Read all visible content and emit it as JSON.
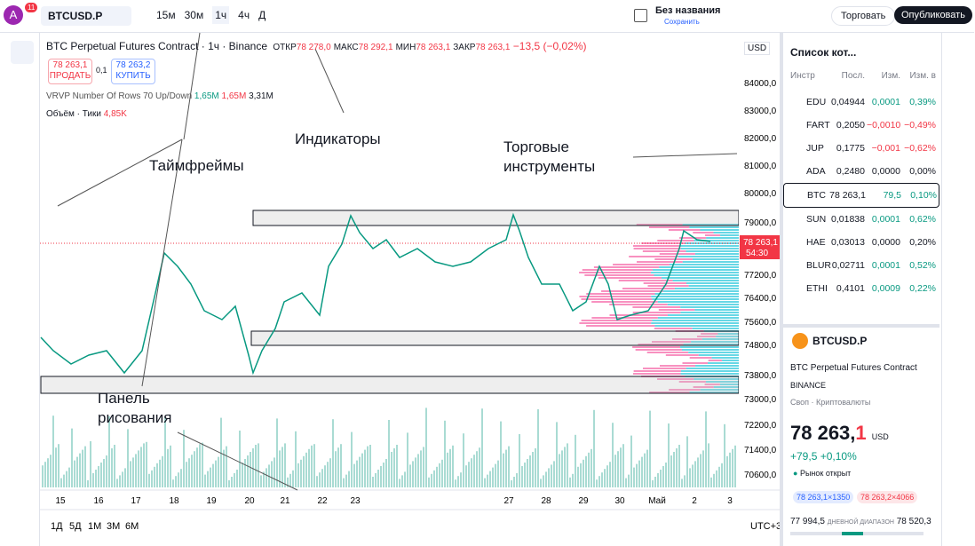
{
  "header": {
    "avatar": "A",
    "badge": "11",
    "symbol": "BTCUSD.P",
    "timeframes": [
      "15м",
      "30м",
      "1ч",
      "4ч",
      "Д"
    ],
    "layout_name": "Без названия",
    "saved": "Сохранить",
    "trade": "Торговать",
    "publish": "Опубликовать"
  },
  "chart": {
    "legend": "BTC Perpetual Futures Contract · 1ч · Binance",
    "ohlc": [
      [
        "ОТКР",
        "78 278,0"
      ],
      [
        "МАКС",
        "78 292,1"
      ],
      [
        "МИН",
        "78 263,1"
      ],
      [
        "ЗАКР",
        "78 263,1"
      ]
    ],
    "change": "−13,5 (−0,02%)",
    "sell_price": "78 263,1",
    "sell": "ПРОДАТЬ",
    "spread": "0,1",
    "buy_price": "78 263,2",
    "buy": "КУПИТЬ",
    "vrvp": "VRVP Number Of Rows 70 Up/Down",
    "vrvp_values": [
      "1,65M",
      "1,65M",
      "3,31M"
    ],
    "volume": "Объём · Тики",
    "volume_value": "4,85K",
    "currency": "USD",
    "price_axis": [
      "84000,0",
      "83000,0",
      "82000,0",
      "81000,0",
      "80000,0",
      "79000,0",
      "77200,0",
      "76400,0",
      "75600,0",
      "74800,0",
      "73800,0",
      "73000,0",
      "72200,0",
      "71400,0",
      "70600,0"
    ],
    "current_price": "78 263,1",
    "countdown": "54:30",
    "time_axis": [
      "15",
      "16",
      "17",
      "18",
      "19",
      "20",
      "21",
      "22",
      "23",
      "27",
      "28",
      "29",
      "30",
      "Май",
      "2",
      "3"
    ],
    "ranges": [
      "1Д",
      "5Д",
      "1М",
      "3М",
      "6М"
    ],
    "timezone": "UTC+3"
  },
  "annotations": {
    "timeframes": "Таймфреймы",
    "indicators": "Индикаторы",
    "instruments": "Торговые\nинструменты",
    "drawing": "Панель\nрисования"
  },
  "watchlist": {
    "title": "Список кот...",
    "headers": [
      "Инстр",
      "Посл.",
      "Изм.",
      "Изм. в"
    ],
    "rows": [
      [
        "EDU",
        "0,04944",
        "0,0001",
        "0,39%"
      ],
      [
        "FART",
        "0,2050",
        "−0,0010",
        "−0,49%"
      ],
      [
        "JUP",
        "0,1775",
        "−0,001",
        "−0,62%"
      ],
      [
        "ADA",
        "0,2480",
        "0,0000",
        "0,00%"
      ],
      [
        "BTC",
        "78 263,1",
        "79,5",
        "0,10%"
      ],
      [
        "SUN",
        "0,01838",
        "0,0001",
        "0,62%"
      ],
      [
        "HAE",
        "0,03013",
        "0,0000",
        "0,20%"
      ],
      [
        "BLUR",
        "0,02711",
        "0,0001",
        "0,52%"
      ],
      [
        "ETHI",
        "0,4101",
        "0,0009",
        "0,22%"
      ]
    ]
  },
  "details": {
    "symbol": "BTCUSD.P",
    "name": "BTC Perpetual Futures Contract",
    "exchange": "BINANCE",
    "kind": "Своп · Криптовалюты",
    "price": "78 263,",
    "price_last": "1",
    "currency": "USD",
    "change": "+79,5",
    "change_pct": "+0,10%",
    "status": "Рынок открыт",
    "bid": "78 263,1×1350",
    "ask": "78 263,2×4066",
    "low": "77 994,5",
    "range": "ДНЕВНОЙ ДИАПАЗОН",
    "high": "78 520,3"
  }
}
